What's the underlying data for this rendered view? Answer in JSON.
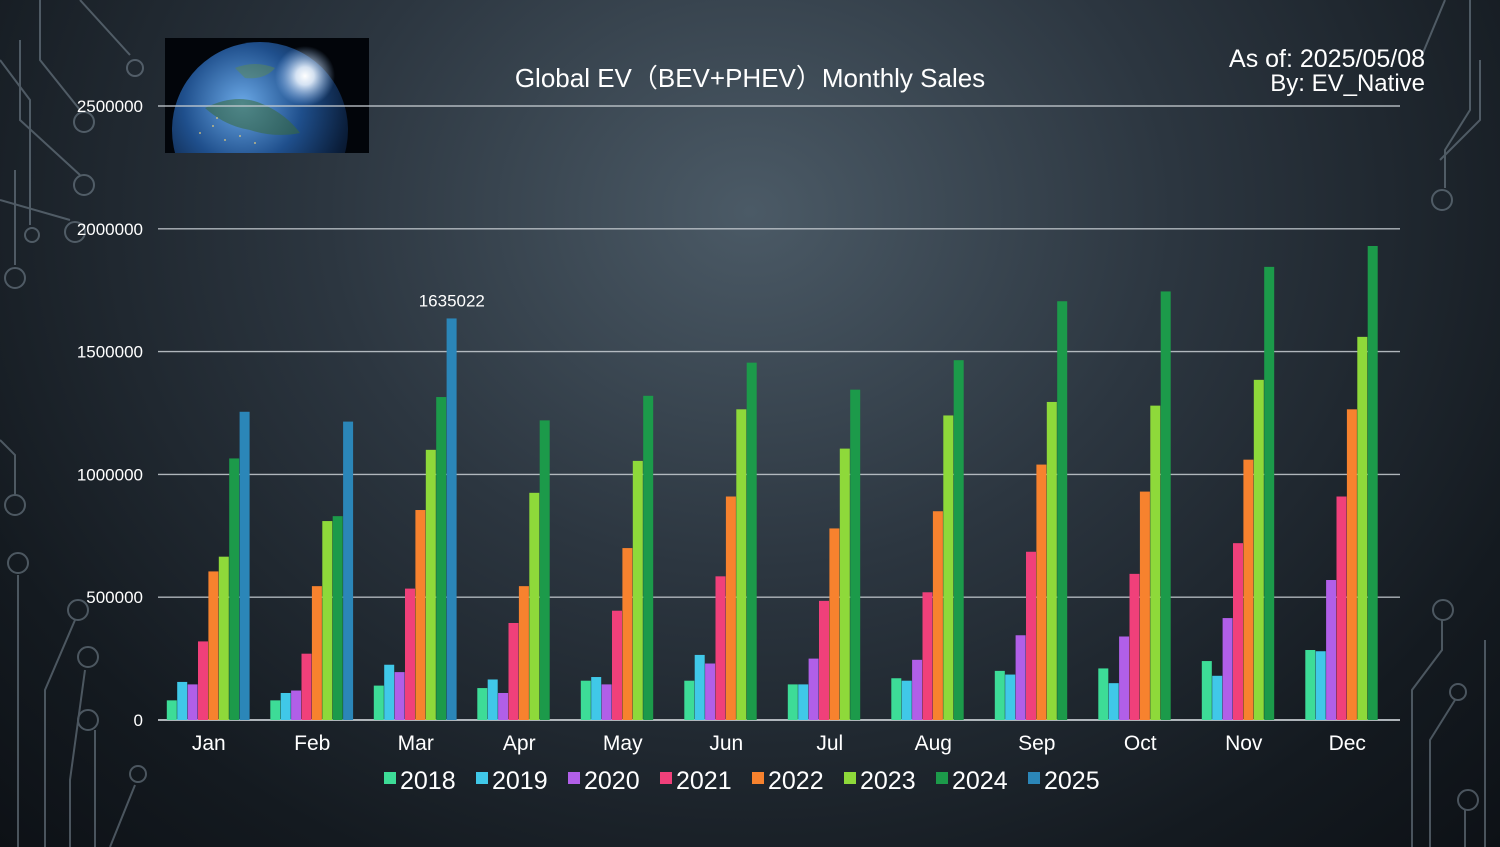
{
  "header": {
    "title": "Global EV（BEV+PHEV）Monthly Sales",
    "as_of": "As of: 2025/05/08",
    "by": "By: EV_Native"
  },
  "chart_data": {
    "type": "bar",
    "title": "Global EV（BEV+PHEV）Monthly Sales",
    "xlabel": "",
    "ylabel": "",
    "ylim": [
      0,
      2500000
    ],
    "yticks": [
      "0",
      "500000",
      "1000000",
      "1500000",
      "2000000",
      "2500000"
    ],
    "grid": true,
    "legend_position": "bottom",
    "categories": [
      "Jan",
      "Feb",
      "Mar",
      "Apr",
      "May",
      "Jun",
      "Jul",
      "Aug",
      "Sep",
      "Oct",
      "Nov",
      "Dec"
    ],
    "series": [
      {
        "name": "2018",
        "color": "#3ddc97",
        "values": [
          80000,
          80000,
          140000,
          130000,
          160000,
          160000,
          145000,
          170000,
          200000,
          210000,
          240000,
          285000
        ]
      },
      {
        "name": "2019",
        "color": "#40c8e8",
        "values": [
          155000,
          110000,
          225000,
          165000,
          175000,
          265000,
          145000,
          160000,
          185000,
          150000,
          180000,
          280000
        ]
      },
      {
        "name": "2020",
        "color": "#b15fe8",
        "values": [
          145000,
          120000,
          195000,
          110000,
          145000,
          230000,
          250000,
          245000,
          345000,
          340000,
          415000,
          570000
        ]
      },
      {
        "name": "2021",
        "color": "#f0407a",
        "values": [
          320000,
          270000,
          535000,
          395000,
          445000,
          585000,
          485000,
          520000,
          685000,
          595000,
          720000,
          910000
        ]
      },
      {
        "name": "2022",
        "color": "#f7822e",
        "values": [
          605000,
          545000,
          855000,
          545000,
          700000,
          910000,
          780000,
          850000,
          1040000,
          930000,
          1060000,
          1265000
        ]
      },
      {
        "name": "2023",
        "color": "#8ed93a",
        "values": [
          665000,
          810000,
          1100000,
          925000,
          1055000,
          1265000,
          1105000,
          1240000,
          1295000,
          1280000,
          1385000,
          1560000
        ]
      },
      {
        "name": "2024",
        "color": "#1c9a4a",
        "values": [
          1065000,
          830000,
          1315000,
          1220000,
          1320000,
          1455000,
          1345000,
          1465000,
          1705000,
          1745000,
          1845000,
          1930000
        ]
      },
      {
        "name": "2025",
        "color": "#2b86b8",
        "values": [
          1255000,
          1215000,
          1635022,
          null,
          null,
          null,
          null,
          null,
          null,
          null,
          null,
          null
        ]
      }
    ],
    "annotations": [
      {
        "category": "Mar",
        "series": "2025",
        "text": "1635022"
      }
    ]
  },
  "image": {
    "globe_icon": "earth-globe-image"
  }
}
